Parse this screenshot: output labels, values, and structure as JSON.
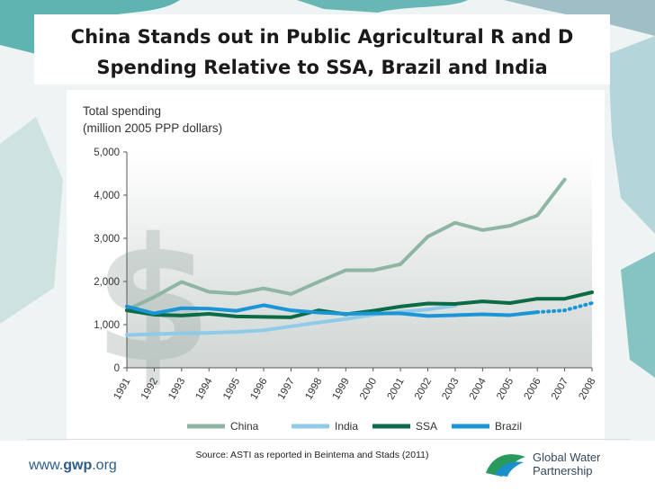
{
  "slide": {
    "title_line1": "China Stands out in Public Agricultural R and D",
    "title_line2": "Spending Relative to SSA, Brazil and India",
    "source": "Source: ASTI as reported in Beintema and Stads (2011)",
    "url_prefix": "www.",
    "url_bold": "gwp",
    "url_suffix": ".org",
    "logo_line1": "Global Water",
    "logo_line2": "Partnership"
  },
  "colors": {
    "china": "#8fb5a3",
    "india": "#8fcbe8",
    "ssa": "#0a6b45",
    "brazil": "#1a95d6",
    "plot_top": "#ffffff",
    "plot_bottom": "#cfd6d4"
  },
  "chart_data": {
    "type": "line",
    "ylabel_line1": "Total spending",
    "ylabel_line2": "(million 2005 PPP dollars)",
    "ylim": [
      0,
      5000
    ],
    "yticks": [
      0,
      1000,
      2000,
      3000,
      4000,
      5000
    ],
    "ytick_labels": [
      "0",
      "1,000",
      "2,000",
      "3,000",
      "4,000",
      "5,000"
    ],
    "x": [
      1991,
      1992,
      1993,
      1994,
      1995,
      1996,
      1997,
      1998,
      1999,
      2000,
      2001,
      2002,
      2003,
      2004,
      2005,
      2006,
      2007,
      2008
    ],
    "x_labels": [
      "1991",
      "1992",
      "1993",
      "1994",
      "1995",
      "1996",
      "1997",
      "1998",
      "1999",
      "2000",
      "2001",
      "2002",
      "2003",
      "2004",
      "2005",
      "2006",
      "2007",
      "2008"
    ],
    "series": [
      {
        "name": "China",
        "key": "china",
        "x": [
          1991,
          1992,
          1993,
          1994,
          1995,
          1996,
          1997,
          1998,
          1999,
          2000,
          2001,
          2002,
          2003,
          2004,
          2005,
          2006,
          2007
        ],
        "values": [
          1340,
          1640,
          1990,
          1760,
          1720,
          1840,
          1710,
          1990,
          2260,
          2260,
          2400,
          3040,
          3360,
          3190,
          3290,
          3530,
          4360
        ],
        "dotted_from": null
      },
      {
        "name": "India",
        "key": "india",
        "x": [
          1991,
          1992,
          1993,
          1994,
          1995,
          1996,
          1997,
          1998,
          1999,
          2000,
          2001,
          2002,
          2003
        ],
        "values": [
          760,
          780,
          800,
          810,
          830,
          870,
          960,
          1050,
          1130,
          1230,
          1300,
          1350,
          1440
        ],
        "dotted_from": null
      },
      {
        "name": "SSA",
        "key": "ssa",
        "x": [
          1991,
          1992,
          1993,
          1994,
          1995,
          1996,
          1997,
          1998,
          1999,
          2000,
          2001,
          2002,
          2003,
          2004,
          2005,
          2006,
          2007,
          2008
        ],
        "values": [
          1330,
          1230,
          1210,
          1250,
          1190,
          1180,
          1170,
          1330,
          1240,
          1320,
          1420,
          1490,
          1480,
          1540,
          1500,
          1600,
          1600,
          1750
        ],
        "dotted_from": null
      },
      {
        "name": "Brazil",
        "key": "brazil",
        "x": [
          1991,
          1992,
          1993,
          1994,
          1995,
          1996,
          1997,
          1998,
          1999,
          2000,
          2001,
          2002,
          2003,
          2004,
          2005,
          2006,
          2007,
          2008
        ],
        "values": [
          1420,
          1260,
          1380,
          1370,
          1320,
          1450,
          1330,
          1280,
          1250,
          1260,
          1260,
          1200,
          1220,
          1240,
          1220,
          1290,
          1330,
          1500
        ],
        "dotted_from": 2006
      }
    ],
    "legend": [
      "China",
      "India",
      "SSA",
      "Brazil"
    ],
    "legend_position": "bottom"
  }
}
